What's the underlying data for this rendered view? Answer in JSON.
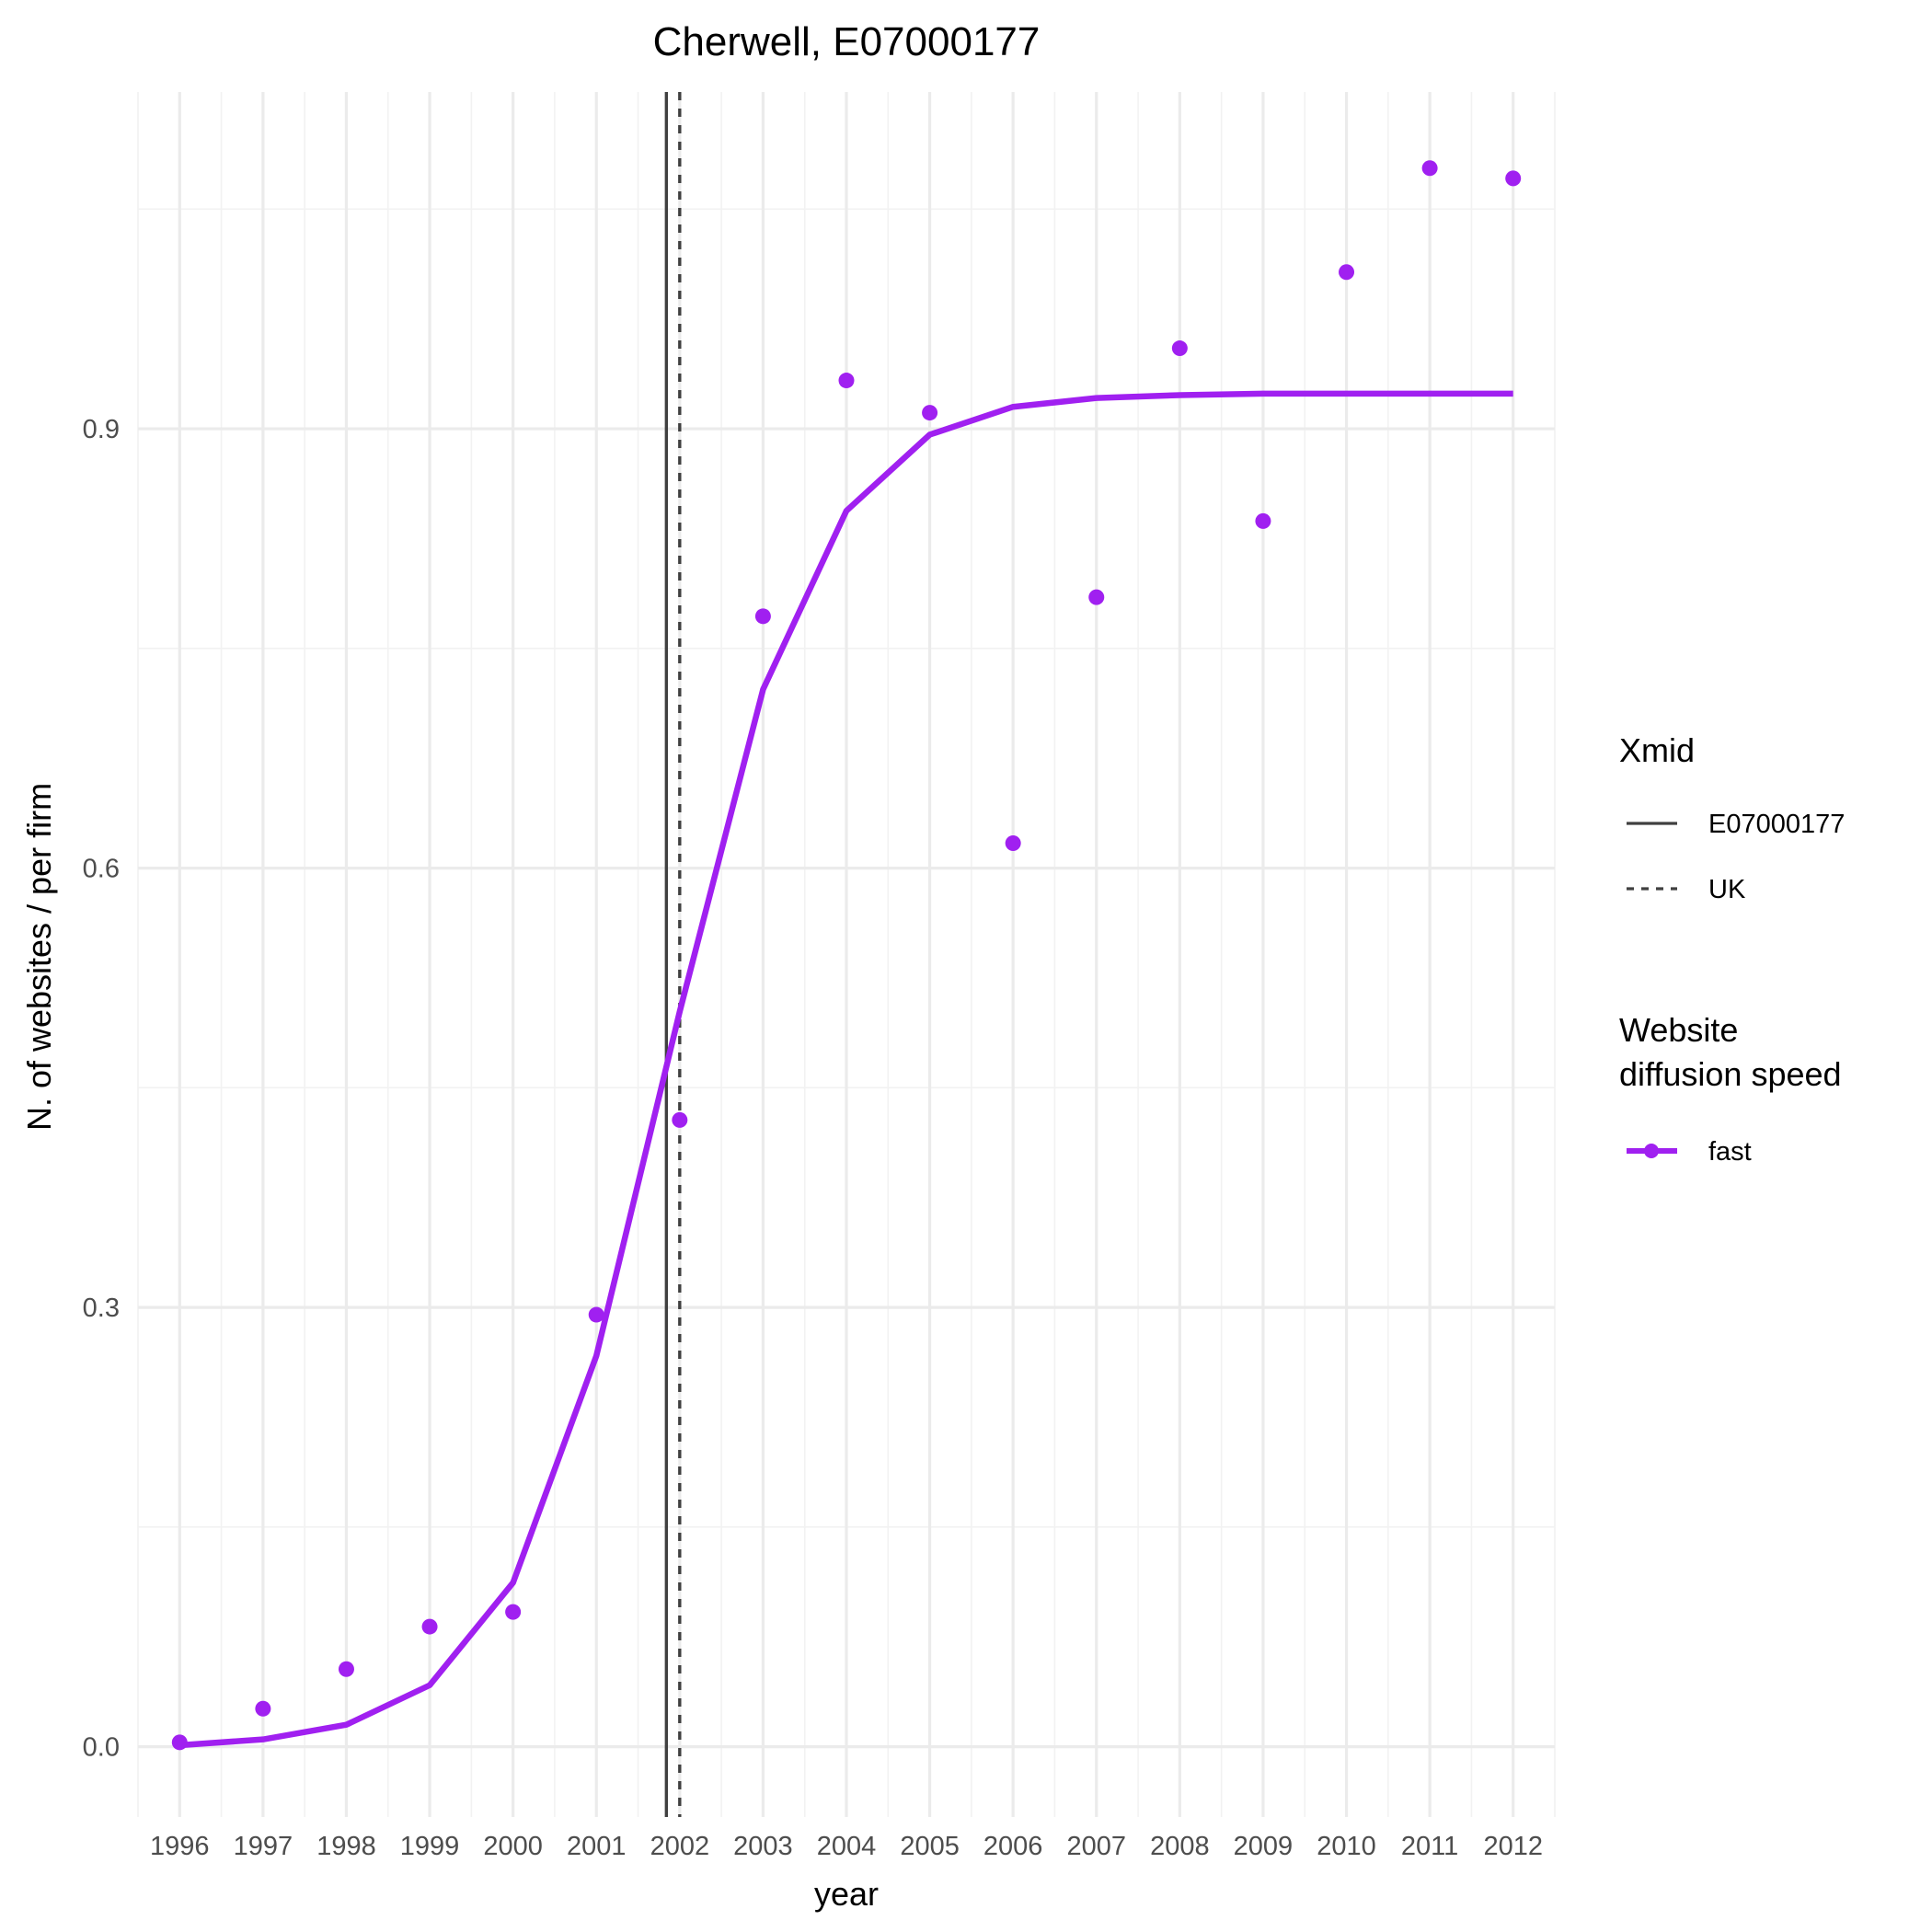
{
  "chart_data": {
    "type": "line",
    "title": "Cherwell, E07000177",
    "xlabel": "year",
    "ylabel": "N. of websites / per firm",
    "x": [
      1996,
      1997,
      1998,
      1999,
      2000,
      2001,
      2002,
      2003,
      2004,
      2005,
      2006,
      2007,
      2008,
      2009,
      2010,
      2011,
      2012
    ],
    "x_ticks": [
      "1996",
      "1997",
      "1998",
      "1999",
      "2000",
      "2001",
      "2002",
      "2003",
      "2004",
      "2005",
      "2006",
      "2007",
      "2008",
      "2009",
      "2010",
      "2011",
      "2012"
    ],
    "y_ticks": [
      "0.0",
      "0.3",
      "0.6",
      "0.9"
    ],
    "xlim": [
      1995.5,
      2012.5
    ],
    "ylim": [
      -0.048,
      1.13
    ],
    "grid": true,
    "series": [
      {
        "name": "fast",
        "kind": "points",
        "color": "#a020f0",
        "values": [
          0.003,
          0.026,
          0.053,
          0.082,
          0.092,
          0.295,
          0.428,
          0.772,
          0.933,
          0.911,
          0.617,
          0.785,
          0.955,
          0.837,
          1.007,
          1.078,
          1.071
        ]
      },
      {
        "name": "fast",
        "kind": "fitted line",
        "color": "#a020f0",
        "values": [
          0.001,
          0.005,
          0.015,
          0.042,
          0.112,
          0.267,
          0.502,
          0.722,
          0.844,
          0.896,
          0.915,
          0.921,
          0.923,
          0.924,
          0.924,
          0.924,
          0.924
        ]
      }
    ],
    "vlines": [
      {
        "name": "E07000177",
        "x": 2001.84,
        "style": "solid",
        "color": "#404040"
      },
      {
        "name": "UK",
        "x": 2002.0,
        "style": "dashed",
        "color": "#404040"
      }
    ],
    "legend": {
      "position": "right",
      "groups": [
        {
          "title": "Xmid",
          "entries": [
            "E07000177",
            "UK"
          ]
        },
        {
          "title_lines": [
            "Website",
            "diffusion speed"
          ],
          "entries": [
            "fast"
          ]
        }
      ]
    }
  }
}
